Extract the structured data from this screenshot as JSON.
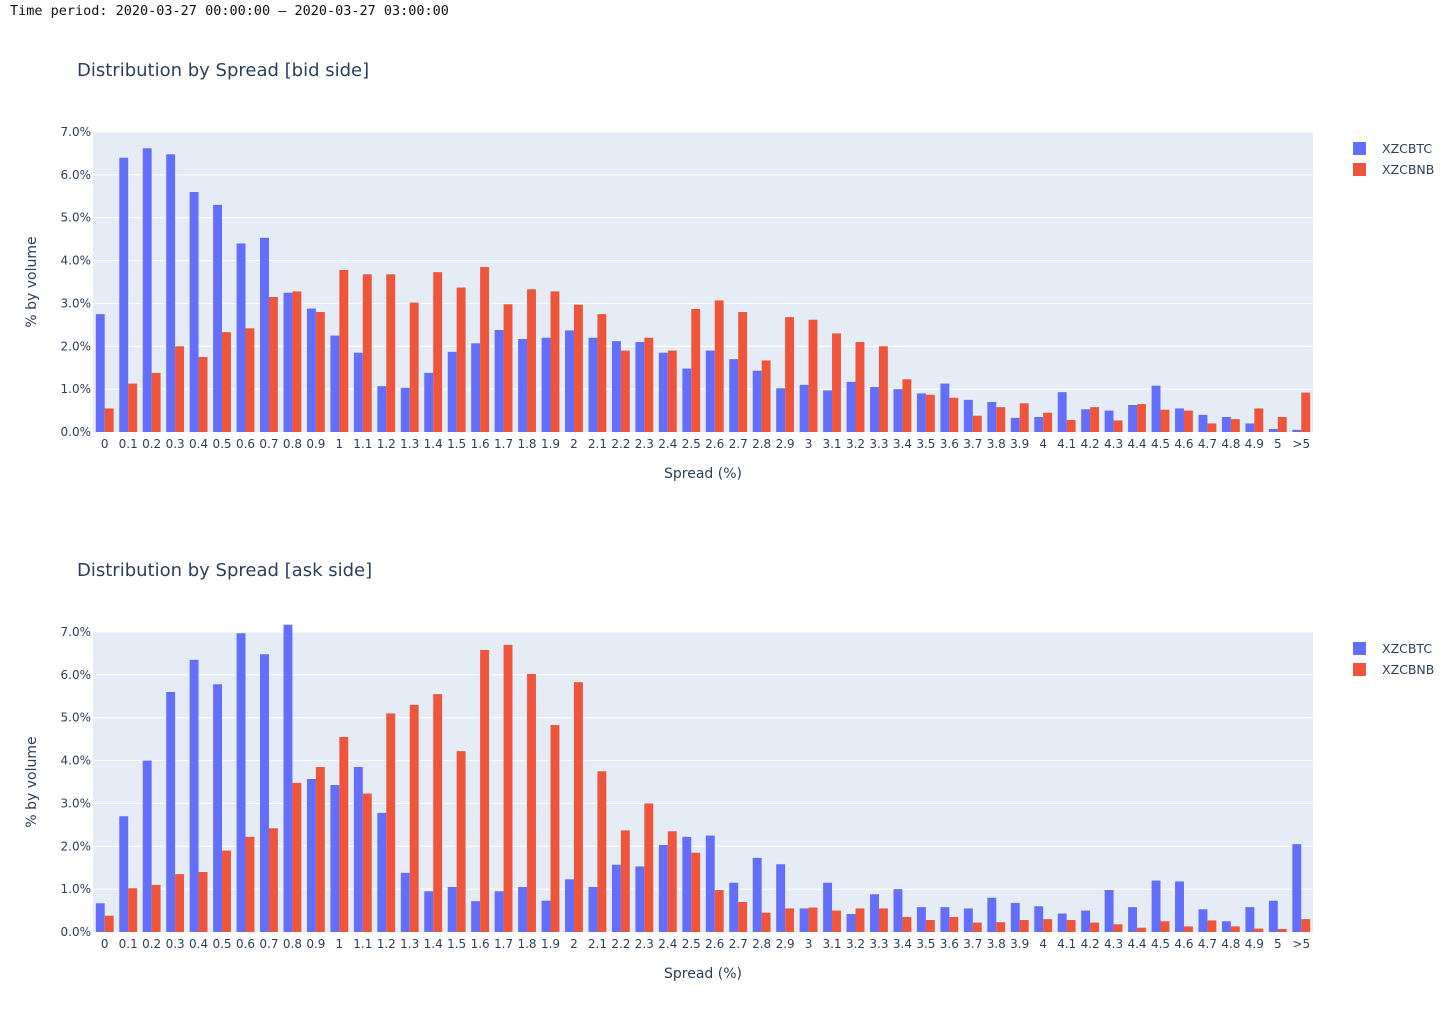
{
  "header": {
    "time_period": "Time period: 2020-03-27 00:00:00 – 2020-03-27 03:00:00"
  },
  "colors": {
    "plot_bg": "#e5ecf6",
    "grid": "#ffffff",
    "text": "#2a3f5f"
  },
  "chart_data": [
    {
      "type": "bar",
      "title": "Distribution by Spread [bid side]",
      "xlabel": "Spread (%)",
      "ylabel": "% by volume",
      "ylim": [
        0,
        7.0
      ],
      "yticks": [
        "0.0%",
        "1.0%",
        "2.0%",
        "3.0%",
        "4.0%",
        "5.0%",
        "6.0%",
        "7.0%"
      ],
      "legend_position": "top-right",
      "categories": [
        "0",
        "0.1",
        "0.2",
        "0.3",
        "0.4",
        "0.5",
        "0.6",
        "0.7",
        "0.8",
        "0.9",
        "1",
        "1.1",
        "1.2",
        "1.3",
        "1.4",
        "1.5",
        "1.6",
        "1.7",
        "1.8",
        "1.9",
        "2",
        "2.1",
        "2.2",
        "2.3",
        "2.4",
        "2.5",
        "2.6",
        "2.7",
        "2.8",
        "2.9",
        "3",
        "3.1",
        "3.2",
        "3.3",
        "3.4",
        "3.5",
        "3.6",
        "3.7",
        "3.8",
        "3.9",
        "4",
        "4.1",
        "4.2",
        "4.3",
        "4.4",
        "4.5",
        "4.6",
        "4.7",
        "4.8",
        "4.9",
        "5",
        ">5"
      ],
      "series": [
        {
          "name": "XZCBTC",
          "color": "#636efa",
          "values": [
            2.75,
            6.4,
            6.62,
            6.48,
            5.6,
            5.3,
            4.4,
            4.53,
            3.25,
            2.88,
            2.25,
            1.85,
            1.07,
            1.03,
            1.38,
            1.87,
            2.07,
            2.38,
            2.17,
            2.2,
            2.37,
            2.2,
            2.12,
            2.1,
            1.85,
            1.48,
            1.9,
            1.7,
            1.43,
            1.02,
            1.1,
            0.97,
            1.17,
            1.05,
            1.0,
            0.9,
            1.13,
            0.75,
            0.7,
            0.33,
            0.35,
            0.93,
            0.53,
            0.5,
            0.63,
            1.08,
            0.55,
            0.4,
            0.35,
            0.2,
            0.07,
            0.05
          ]
        },
        {
          "name": "XZCBNB",
          "color": "#ef553b",
          "values": [
            0.55,
            1.13,
            1.38,
            2.0,
            1.75,
            2.33,
            2.42,
            3.15,
            3.28,
            2.8,
            3.78,
            3.68,
            3.68,
            3.02,
            3.73,
            3.37,
            3.85,
            2.98,
            3.33,
            3.28,
            2.97,
            2.75,
            1.9,
            2.2,
            1.9,
            2.87,
            3.07,
            2.8,
            1.67,
            2.68,
            2.62,
            2.3,
            2.1,
            2.0,
            1.23,
            0.87,
            0.8,
            0.38,
            0.58,
            0.67,
            0.45,
            0.28,
            0.58,
            0.27,
            0.65,
            0.52,
            0.5,
            0.2,
            0.3,
            0.55,
            0.35,
            0.92
          ]
        }
      ]
    },
    {
      "type": "bar",
      "title": "Distribution by Spread [ask side]",
      "xlabel": "Spread (%)",
      "ylabel": "% by volume",
      "ylim": [
        0,
        7.0
      ],
      "yticks": [
        "0.0%",
        "1.0%",
        "2.0%",
        "3.0%",
        "4.0%",
        "5.0%",
        "6.0%",
        "7.0%"
      ],
      "legend_position": "top-right",
      "categories": [
        "0",
        "0.1",
        "0.2",
        "0.3",
        "0.4",
        "0.5",
        "0.6",
        "0.7",
        "0.8",
        "0.9",
        "1",
        "1.1",
        "1.2",
        "1.3",
        "1.4",
        "1.5",
        "1.6",
        "1.7",
        "1.8",
        "1.9",
        "2",
        "2.1",
        "2.2",
        "2.3",
        "2.4",
        "2.5",
        "2.6",
        "2.7",
        "2.8",
        "2.9",
        "3",
        "3.1",
        "3.2",
        "3.3",
        "3.4",
        "3.5",
        "3.6",
        "3.7",
        "3.8",
        "3.9",
        "4",
        "4.1",
        "4.2",
        "4.3",
        "4.4",
        "4.5",
        "4.6",
        "4.7",
        "4.8",
        "4.9",
        "5",
        ">5"
      ],
      "series": [
        {
          "name": "XZCBTC",
          "color": "#636efa",
          "values": [
            0.67,
            2.7,
            4.0,
            5.6,
            6.35,
            5.78,
            6.97,
            6.48,
            7.17,
            3.57,
            3.43,
            3.85,
            2.78,
            1.38,
            0.95,
            1.05,
            0.72,
            0.95,
            1.05,
            0.73,
            1.23,
            1.05,
            1.57,
            1.53,
            2.03,
            2.22,
            2.25,
            1.15,
            1.73,
            1.58,
            0.55,
            1.15,
            0.42,
            0.88,
            1.0,
            0.58,
            0.58,
            0.55,
            0.8,
            0.68,
            0.6,
            0.43,
            0.5,
            0.98,
            0.58,
            1.2,
            1.18,
            0.53,
            0.25,
            0.58,
            0.73,
            2.05
          ]
        },
        {
          "name": "XZCBNB",
          "color": "#ef553b",
          "values": [
            0.38,
            1.02,
            1.1,
            1.35,
            1.4,
            1.9,
            2.22,
            2.42,
            3.48,
            3.85,
            4.55,
            3.23,
            5.1,
            5.3,
            5.55,
            4.22,
            6.58,
            6.7,
            6.02,
            4.83,
            5.83,
            3.75,
            2.37,
            3.0,
            2.35,
            1.85,
            0.98,
            0.7,
            0.45,
            0.55,
            0.57,
            0.5,
            0.55,
            0.55,
            0.35,
            0.28,
            0.35,
            0.22,
            0.23,
            0.28,
            0.3,
            0.28,
            0.22,
            0.18,
            0.1,
            0.25,
            0.13,
            0.27,
            0.13,
            0.08,
            0.07,
            0.3
          ]
        }
      ]
    }
  ]
}
